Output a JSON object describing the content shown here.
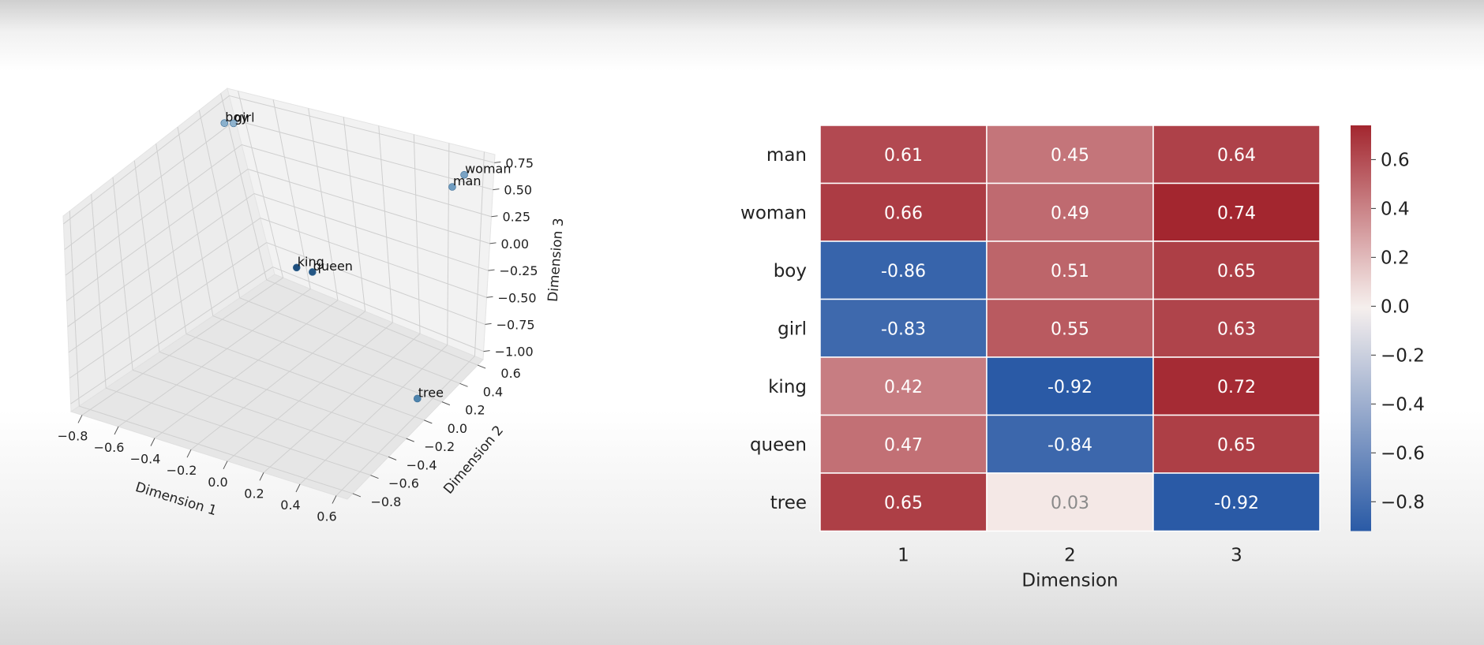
{
  "chart_data": [
    {
      "type": "scatter",
      "projection": "3d",
      "xlabel": "Dimension 1",
      "ylabel": "Dimension 2",
      "zlabel": "Dimension 3",
      "xticks": [
        "−0.8",
        "−0.6",
        "−0.4",
        "−0.2",
        "0.0",
        "0.2",
        "0.4",
        "0.6"
      ],
      "yticks": [
        "−0.8",
        "−0.6",
        "−0.4",
        "−0.2",
        "0.0",
        "0.2",
        "0.4",
        "0.6"
      ],
      "zticks": [
        "−1.00",
        "−0.75",
        "−0.50",
        "−0.25",
        "0.00",
        "0.25",
        "0.50",
        "0.75"
      ],
      "xlim": [
        -0.95,
        0.72
      ],
      "ylim": [
        -0.95,
        0.72
      ],
      "zlim": [
        -1.05,
        0.8
      ],
      "grid": true,
      "points": [
        {
          "label": "man",
          "x": 0.61,
          "y": 0.45,
          "z": 0.64,
          "color": "#6f9cc0"
        },
        {
          "label": "woman",
          "x": 0.66,
          "y": 0.49,
          "z": 0.74,
          "color": "#7aa3c4"
        },
        {
          "label": "boy",
          "x": -0.86,
          "y": 0.51,
          "z": 0.65,
          "color": "#8ab0cc"
        },
        {
          "label": "girl",
          "x": -0.83,
          "y": 0.55,
          "z": 0.63,
          "color": "#8fb3ce"
        },
        {
          "label": "king",
          "x": 0.42,
          "y": -0.92,
          "z": 0.72,
          "color": "#1f4f7e"
        },
        {
          "label": "queen",
          "x": 0.47,
          "y": -0.84,
          "z": 0.65,
          "color": "#255785"
        },
        {
          "label": "tree",
          "x": 0.65,
          "y": 0.03,
          "z": -0.92,
          "color": "#4e84ad"
        }
      ]
    },
    {
      "type": "heatmap",
      "rows": [
        "man",
        "woman",
        "boy",
        "girl",
        "king",
        "queen",
        "tree"
      ],
      "columns": [
        "1",
        "2",
        "3"
      ],
      "xlabel": "Dimension",
      "values": [
        [
          0.61,
          0.45,
          0.64
        ],
        [
          0.66,
          0.49,
          0.74
        ],
        [
          -0.86,
          0.51,
          0.65
        ],
        [
          -0.83,
          0.55,
          0.63
        ],
        [
          0.42,
          -0.92,
          0.72
        ],
        [
          0.47,
          -0.84,
          0.65
        ],
        [
          0.65,
          0.03,
          -0.92
        ]
      ],
      "value_labels": [
        [
          "0.61",
          "0.45",
          "0.64"
        ],
        [
          "0.66",
          "0.49",
          "0.74"
        ],
        [
          "-0.86",
          "0.51",
          "0.65"
        ],
        [
          "-0.83",
          "0.55",
          "0.63"
        ],
        [
          "0.42",
          "-0.92",
          "0.72"
        ],
        [
          "0.47",
          "-0.84",
          "0.65"
        ],
        [
          "0.65",
          "0.03",
          "-0.92"
        ]
      ],
      "colorbar_ticks": [
        {
          "value": 0.6,
          "label": "0.6"
        },
        {
          "value": 0.4,
          "label": "0.4"
        },
        {
          "value": 0.2,
          "label": "0.2"
        },
        {
          "value": 0.0,
          "label": "0.0"
        },
        {
          "value": -0.2,
          "label": "−0.2"
        },
        {
          "value": -0.4,
          "label": "−0.4"
        },
        {
          "value": -0.6,
          "label": "−0.6"
        },
        {
          "value": -0.8,
          "label": "−0.8"
        }
      ],
      "vmin": -0.92,
      "vmax": 0.74,
      "colormap": [
        "#2a5aa6",
        "#f7f0ee",
        "#a3262f"
      ]
    }
  ]
}
